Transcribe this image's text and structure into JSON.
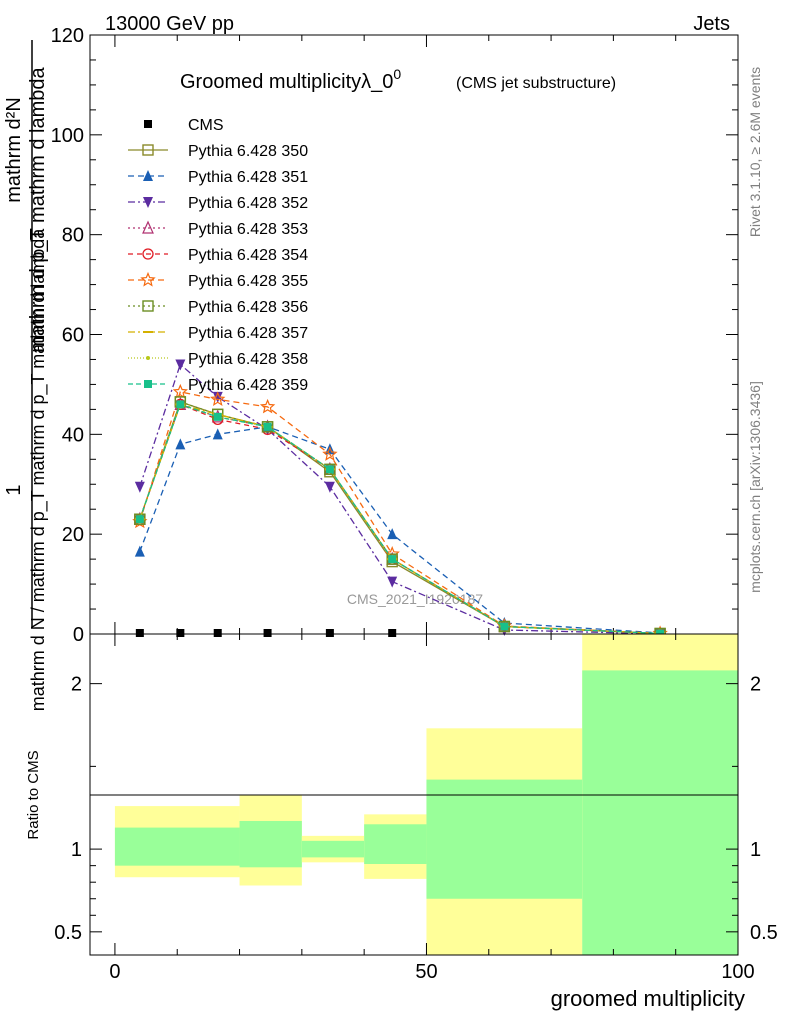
{
  "header": {
    "left": "13000 GeV pp",
    "right": "Jets"
  },
  "side_labels": {
    "rivet": "Rivet 3.1.10, ≥ 2.6M events",
    "mcplots": "mcplots.cern.ch [arXiv:1306.3436]"
  },
  "watermark": "CMS_2021_I1920187",
  "chart_data": [
    {
      "type": "line",
      "title_main": "Groomed multiplicityλ_0",
      "title_sup": "0",
      "title_sub": "(CMS jet substructure)",
      "ylabel_num": "1",
      "ylabel_den": "mathrm d N / mathrm d p_T mathrm d p_T mathrm d lambda",
      "ylabel_right_num": "mathrm d²N",
      "ylabel_right_den": "mathrm d p_T mathrm d lambda",
      "xlim": [
        -4,
        100
      ],
      "ylim": [
        0,
        120
      ],
      "yticks": [
        0,
        20,
        40,
        60,
        80,
        100,
        120
      ],
      "grid": false,
      "legend_position": "top-left",
      "x": [
        4,
        10.5,
        16.5,
        24.5,
        34.5,
        44.5,
        62.5,
        87.5
      ],
      "reference": {
        "name": "CMS",
        "color": "#000000",
        "values": [
          0,
          0,
          0,
          0,
          0,
          0,
          0,
          0
        ]
      },
      "series": [
        {
          "name": "Pythia 6.428 350",
          "color": "#8a8a2a",
          "dash": "",
          "marker": "square-open",
          "values": [
            23.0,
            46.5,
            44.0,
            41.5,
            32.5,
            14.5,
            1.5,
            0.1
          ]
        },
        {
          "name": "Pythia 6.428 351",
          "color": "#1a5fb4",
          "dash": "6,4",
          "marker": "triangle-up",
          "values": [
            16.5,
            38.0,
            40.0,
            41.5,
            37.0,
            20.0,
            2.2,
            0.2
          ]
        },
        {
          "name": "Pythia 6.428 352",
          "color": "#5b2ca0",
          "dash": "7,3,2,3",
          "marker": "triangle-down",
          "values": [
            29.5,
            54.0,
            47.5,
            41.0,
            29.5,
            10.5,
            0.8,
            0.05
          ]
        },
        {
          "name": "Pythia 6.428 353",
          "color": "#b03070",
          "dash": "2,3",
          "marker": "triangle-open",
          "values": [
            23.0,
            46.0,
            43.5,
            41.5,
            33.0,
            15.0,
            1.5,
            0.1
          ]
        },
        {
          "name": "Pythia 6.428 354",
          "color": "#e01b24",
          "dash": "5,4",
          "marker": "circle-open",
          "values": [
            23.0,
            46.0,
            43.0,
            41.0,
            33.0,
            15.0,
            1.5,
            0.1
          ]
        },
        {
          "name": "Pythia 6.428 355",
          "color": "#f66a10",
          "dash": "6,4",
          "marker": "star-open",
          "values": [
            22.5,
            48.5,
            47.0,
            45.5,
            36.0,
            16.0,
            1.6,
            0.1
          ]
        },
        {
          "name": "Pythia 6.428 356",
          "color": "#6b8e23",
          "dash": "2,3",
          "marker": "square-open",
          "values": [
            23.0,
            46.5,
            44.0,
            41.5,
            33.0,
            15.0,
            1.5,
            0.1
          ]
        },
        {
          "name": "Pythia 6.428 357",
          "color": "#d4b000",
          "dash": "7,3,2,3",
          "marker": "dash",
          "values": [
            23.0,
            46.0,
            44.0,
            41.5,
            33.0,
            15.0,
            1.5,
            0.1
          ]
        },
        {
          "name": "Pythia 6.428 358",
          "color": "#b8c81a",
          "dash": "1,2",
          "marker": "dot",
          "values": [
            23.0,
            46.0,
            43.5,
            41.5,
            33.0,
            15.0,
            1.5,
            0.1
          ]
        },
        {
          "name": "Pythia 6.428 359",
          "color": "#18c08a",
          "dash": "5,3",
          "marker": "square-filled",
          "values": [
            23.0,
            46.0,
            43.5,
            41.5,
            33.0,
            15.0,
            1.5,
            0.1
          ]
        }
      ]
    },
    {
      "type": "area",
      "ylabel": "Ratio to CMS",
      "xlabel": "groomed multiplicity",
      "xlim": [
        -4,
        100
      ],
      "xticks": [
        0,
        50,
        100
      ],
      "ylim": [
        0.36,
        2.3
      ],
      "yticks": [
        0.5,
        1,
        2
      ],
      "bands": {
        "yellow_color": "#ffff99",
        "green_color": "#99ff99",
        "edges": [
          0,
          20,
          30,
          40,
          50,
          75,
          100
        ],
        "yellow": [
          [
            0.83,
            1.26
          ],
          [
            0.78,
            1.33
          ],
          [
            0.92,
            1.08
          ],
          [
            0.82,
            1.21
          ],
          [
            0.36,
            1.73
          ],
          [
            0.36,
            2.3
          ]
        ],
        "green": [
          [
            0.9,
            1.13
          ],
          [
            0.89,
            1.17
          ],
          [
            0.95,
            1.05
          ],
          [
            0.91,
            1.15
          ],
          [
            0.7,
            1.42
          ],
          [
            0.36,
            2.08
          ]
        ]
      }
    }
  ]
}
